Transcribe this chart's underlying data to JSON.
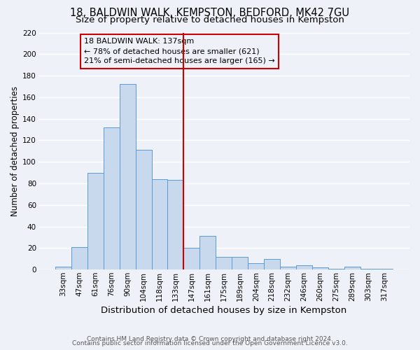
{
  "title": "18, BALDWIN WALK, KEMPSTON, BEDFORD, MK42 7GU",
  "subtitle": "Size of property relative to detached houses in Kempston",
  "xlabel": "Distribution of detached houses by size in Kempston",
  "ylabel": "Number of detached properties",
  "bar_labels": [
    "33sqm",
    "47sqm",
    "61sqm",
    "76sqm",
    "90sqm",
    "104sqm",
    "118sqm",
    "133sqm",
    "147sqm",
    "161sqm",
    "175sqm",
    "189sqm",
    "204sqm",
    "218sqm",
    "232sqm",
    "246sqm",
    "260sqm",
    "275sqm",
    "289sqm",
    "303sqm",
    "317sqm"
  ],
  "bar_values": [
    3,
    21,
    90,
    132,
    172,
    111,
    84,
    83,
    20,
    31,
    12,
    12,
    6,
    10,
    3,
    4,
    2,
    1,
    3,
    1,
    1
  ],
  "bar_color": "#c8d9ed",
  "bar_edge_color": "#5b9bd5",
  "vline_x_index": 7.5,
  "vline_color": "#cc0000",
  "annotation_title": "18 BALDWIN WALK: 137sqm",
  "annotation_line1": "← 78% of detached houses are smaller (621)",
  "annotation_line2": "21% of semi-detached houses are larger (165) →",
  "annotation_box_color": "#cc0000",
  "ylim": [
    0,
    220
  ],
  "yticks": [
    0,
    20,
    40,
    60,
    80,
    100,
    120,
    140,
    160,
    180,
    200,
    220
  ],
  "footer1": "Contains HM Land Registry data © Crown copyright and database right 2024.",
  "footer2": "Contains public sector information licensed under the Open Government Licence v3.0.",
  "bg_color": "#eef2f8",
  "grid_color": "#ffffff",
  "title_fontsize": 10.5,
  "subtitle_fontsize": 9.5,
  "xlabel_fontsize": 9.5,
  "ylabel_fontsize": 8.5,
  "tick_fontsize": 7.5,
  "annotation_fontsize": 8,
  "footer_fontsize": 6.5
}
